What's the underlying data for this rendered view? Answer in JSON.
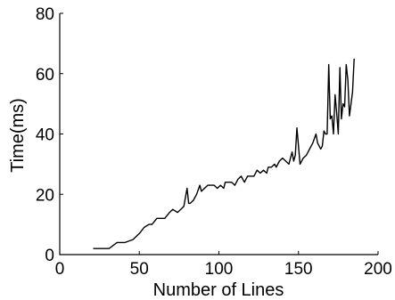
{
  "chart_data": {
    "type": "line",
    "xlabel": "Number of Lines",
    "ylabel": "Time(ms)",
    "xlim": [
      0,
      200
    ],
    "ylim": [
      0,
      80
    ],
    "xticks": [
      0,
      50,
      100,
      150,
      200
    ],
    "yticks": [
      0,
      20,
      40,
      60,
      80
    ],
    "xtick_labels": [
      "0",
      "50",
      "100",
      "150",
      "200"
    ],
    "ytick_labels": [
      "0",
      "20",
      "40",
      "60",
      "80"
    ],
    "grid": false,
    "series": [
      {
        "x": [
          21,
          26,
          31,
          36,
          41,
          46,
          50,
          53,
          56,
          58,
          61,
          63,
          66,
          69,
          71,
          74,
          76,
          78,
          80,
          81,
          82,
          84,
          86,
          88,
          89,
          91,
          93,
          95,
          97,
          99,
          101,
          103,
          104,
          106,
          108,
          110,
          112,
          114,
          116,
          118,
          120,
          122,
          124,
          126,
          128,
          130,
          131,
          133,
          135,
          136,
          138,
          140,
          142,
          144,
          145,
          146,
          147,
          148,
          149,
          151,
          153,
          155,
          157,
          159,
          161,
          162,
          164,
          165,
          166,
          167,
          168,
          169,
          170,
          171,
          172,
          173,
          174,
          175,
          176,
          177,
          178,
          179,
          180,
          181,
          182,
          184,
          185
        ],
        "y": [
          2,
          2,
          2,
          4,
          4,
          5,
          7,
          9,
          10,
          10,
          12,
          12,
          12,
          14,
          15,
          14,
          15,
          16,
          22,
          17,
          17,
          18,
          20,
          23,
          21,
          22,
          23,
          23,
          23,
          22,
          23,
          22,
          24,
          24,
          24,
          23,
          25,
          26,
          24,
          26,
          26,
          26,
          28,
          27,
          28,
          27,
          29,
          29,
          30,
          29,
          31,
          32,
          31,
          30,
          32,
          34,
          31,
          33,
          42,
          30,
          32,
          33,
          35,
          37,
          40,
          37,
          35,
          36,
          41,
          40,
          40,
          63,
          45,
          46,
          40,
          53,
          47,
          40,
          62,
          45,
          50,
          49,
          63,
          58,
          46,
          54,
          65
        ]
      }
    ]
  }
}
